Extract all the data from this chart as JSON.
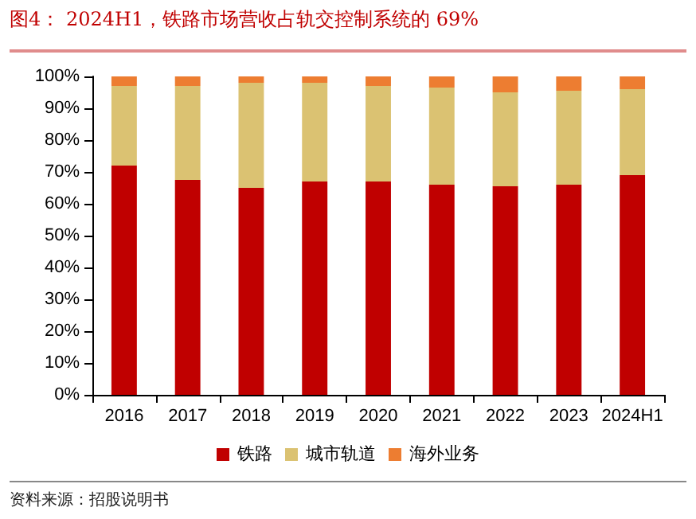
{
  "chart_data": {
    "type": "bar",
    "title": "图4：  2024H1，铁路市场营收占轨交控制系统的 69%",
    "annotations": [
      "资料来源：招股说明书"
    ],
    "categories": [
      "2016",
      "2017",
      "2018",
      "2019",
      "2020",
      "2021",
      "2022",
      "2023",
      "2024H1"
    ],
    "series": [
      {
        "name": "铁路",
        "color": "#c00000",
        "values": [
          72,
          67.5,
          65,
          67,
          67,
          66,
          65.5,
          66,
          69
        ]
      },
      {
        "name": "城市轨道",
        "color": "#dbc272",
        "values": [
          25,
          29.5,
          33,
          31,
          30,
          30.5,
          29.5,
          29.5,
          27
        ]
      },
      {
        "name": "海外业务",
        "color": "#ed7d31",
        "values": [
          3,
          3,
          2,
          2,
          3,
          3.5,
          5,
          4.5,
          4
        ]
      }
    ],
    "stacked": true,
    "ylim": [
      0,
      100
    ],
    "yticks": [
      {
        "value": 0,
        "label": "0%"
      },
      {
        "value": 10,
        "label": "10%"
      },
      {
        "value": 20,
        "label": "20%"
      },
      {
        "value": 30,
        "label": "30%"
      },
      {
        "value": 40,
        "label": "40%"
      },
      {
        "value": 50,
        "label": "50%"
      },
      {
        "value": 60,
        "label": "60%"
      },
      {
        "value": 70,
        "label": "70%"
      },
      {
        "value": 80,
        "label": "80%"
      },
      {
        "value": 90,
        "label": "90%"
      },
      {
        "value": 100,
        "label": "100%"
      }
    ],
    "grid": false,
    "legend": "bottom"
  }
}
